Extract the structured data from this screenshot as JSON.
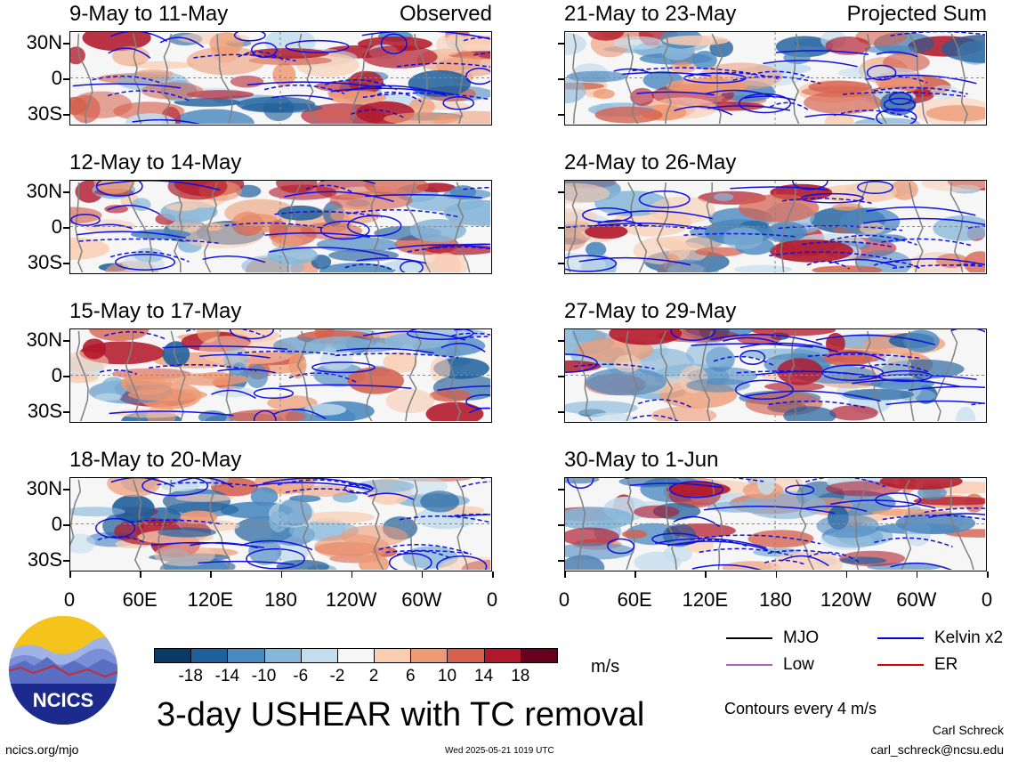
{
  "panels_left": [
    {
      "title": "9-May to 11-May",
      "label": "Observed"
    },
    {
      "title": "12-May to 14-May",
      "label": ""
    },
    {
      "title": "15-May to 17-May",
      "label": ""
    },
    {
      "title": "18-May to 20-May",
      "label": ""
    }
  ],
  "panels_right": [
    {
      "title": "21-May to 23-May",
      "label": "Projected Sum"
    },
    {
      "title": "24-May to 26-May",
      "label": ""
    },
    {
      "title": "27-May to 29-May",
      "label": ""
    },
    {
      "title": "30-May to 1-Jun",
      "label": ""
    }
  ],
  "lat_ticks": [
    "30N",
    "0",
    "30S"
  ],
  "lon_ticks": [
    "0",
    "60E",
    "120E",
    "180",
    "120W",
    "60W",
    "0"
  ],
  "colorbar": {
    "labels": [
      "-18",
      "-14",
      "-10",
      "-6",
      "-2",
      "2",
      "6",
      "10",
      "14",
      "18"
    ],
    "colors": [
      "#0b3a66",
      "#1f5f9c",
      "#4a88c0",
      "#86b6d9",
      "#c4dded",
      "#f7f7f7",
      "#f9cdb2",
      "#ee9a74",
      "#d6604d",
      "#b2182b",
      "#67001f"
    ],
    "unit": "m/s"
  },
  "legend": {
    "items": [
      {
        "label": "MJO",
        "color": "#000000"
      },
      {
        "label": "Kelvin x2",
        "color": "#0000ee"
      },
      {
        "label": "Low",
        "color": "#b060d0"
      },
      {
        "label": "ER",
        "color": "#dd0000"
      }
    ],
    "contour_note": "Contours every 4 m/s"
  },
  "logo_text": "NCICS",
  "main_title": "3-day USHEAR with TC removal",
  "site": "ncics.org/mjo",
  "timestamp": "Wed 2025-05-21 1019 UTC",
  "author": "Carl Schreck",
  "email": "carl_schreck@ncsu.edu",
  "chart_data": {
    "type": "heatmap",
    "title": "3-day USHEAR with TC removal",
    "variable": "USHEAR",
    "units": "m/s",
    "color_levels": [
      -18,
      -14,
      -10,
      -6,
      -2,
      2,
      6,
      10,
      14,
      18
    ],
    "x_ticks": [
      "0",
      "60E",
      "120E",
      "180",
      "120W",
      "60W",
      "0"
    ],
    "y_ticks": [
      "30N",
      "0",
      "30S"
    ],
    "panels": [
      {
        "period": "9-May to 11-May",
        "type": "Observed"
      },
      {
        "period": "12-May to 14-May",
        "type": "Observed"
      },
      {
        "period": "15-May to 17-May",
        "type": "Observed"
      },
      {
        "period": "18-May to 20-May",
        "type": "Observed"
      },
      {
        "period": "21-May to 23-May",
        "type": "Projected Sum"
      },
      {
        "period": "24-May to 26-May",
        "type": "Projected Sum"
      },
      {
        "period": "27-May to 29-May",
        "type": "Projected Sum"
      },
      {
        "period": "30-May to 1-Jun",
        "type": "Projected Sum"
      }
    ],
    "contour_series": [
      "MJO",
      "Kelvin x2",
      "Low",
      "ER"
    ],
    "contour_interval": "4 m/s"
  }
}
